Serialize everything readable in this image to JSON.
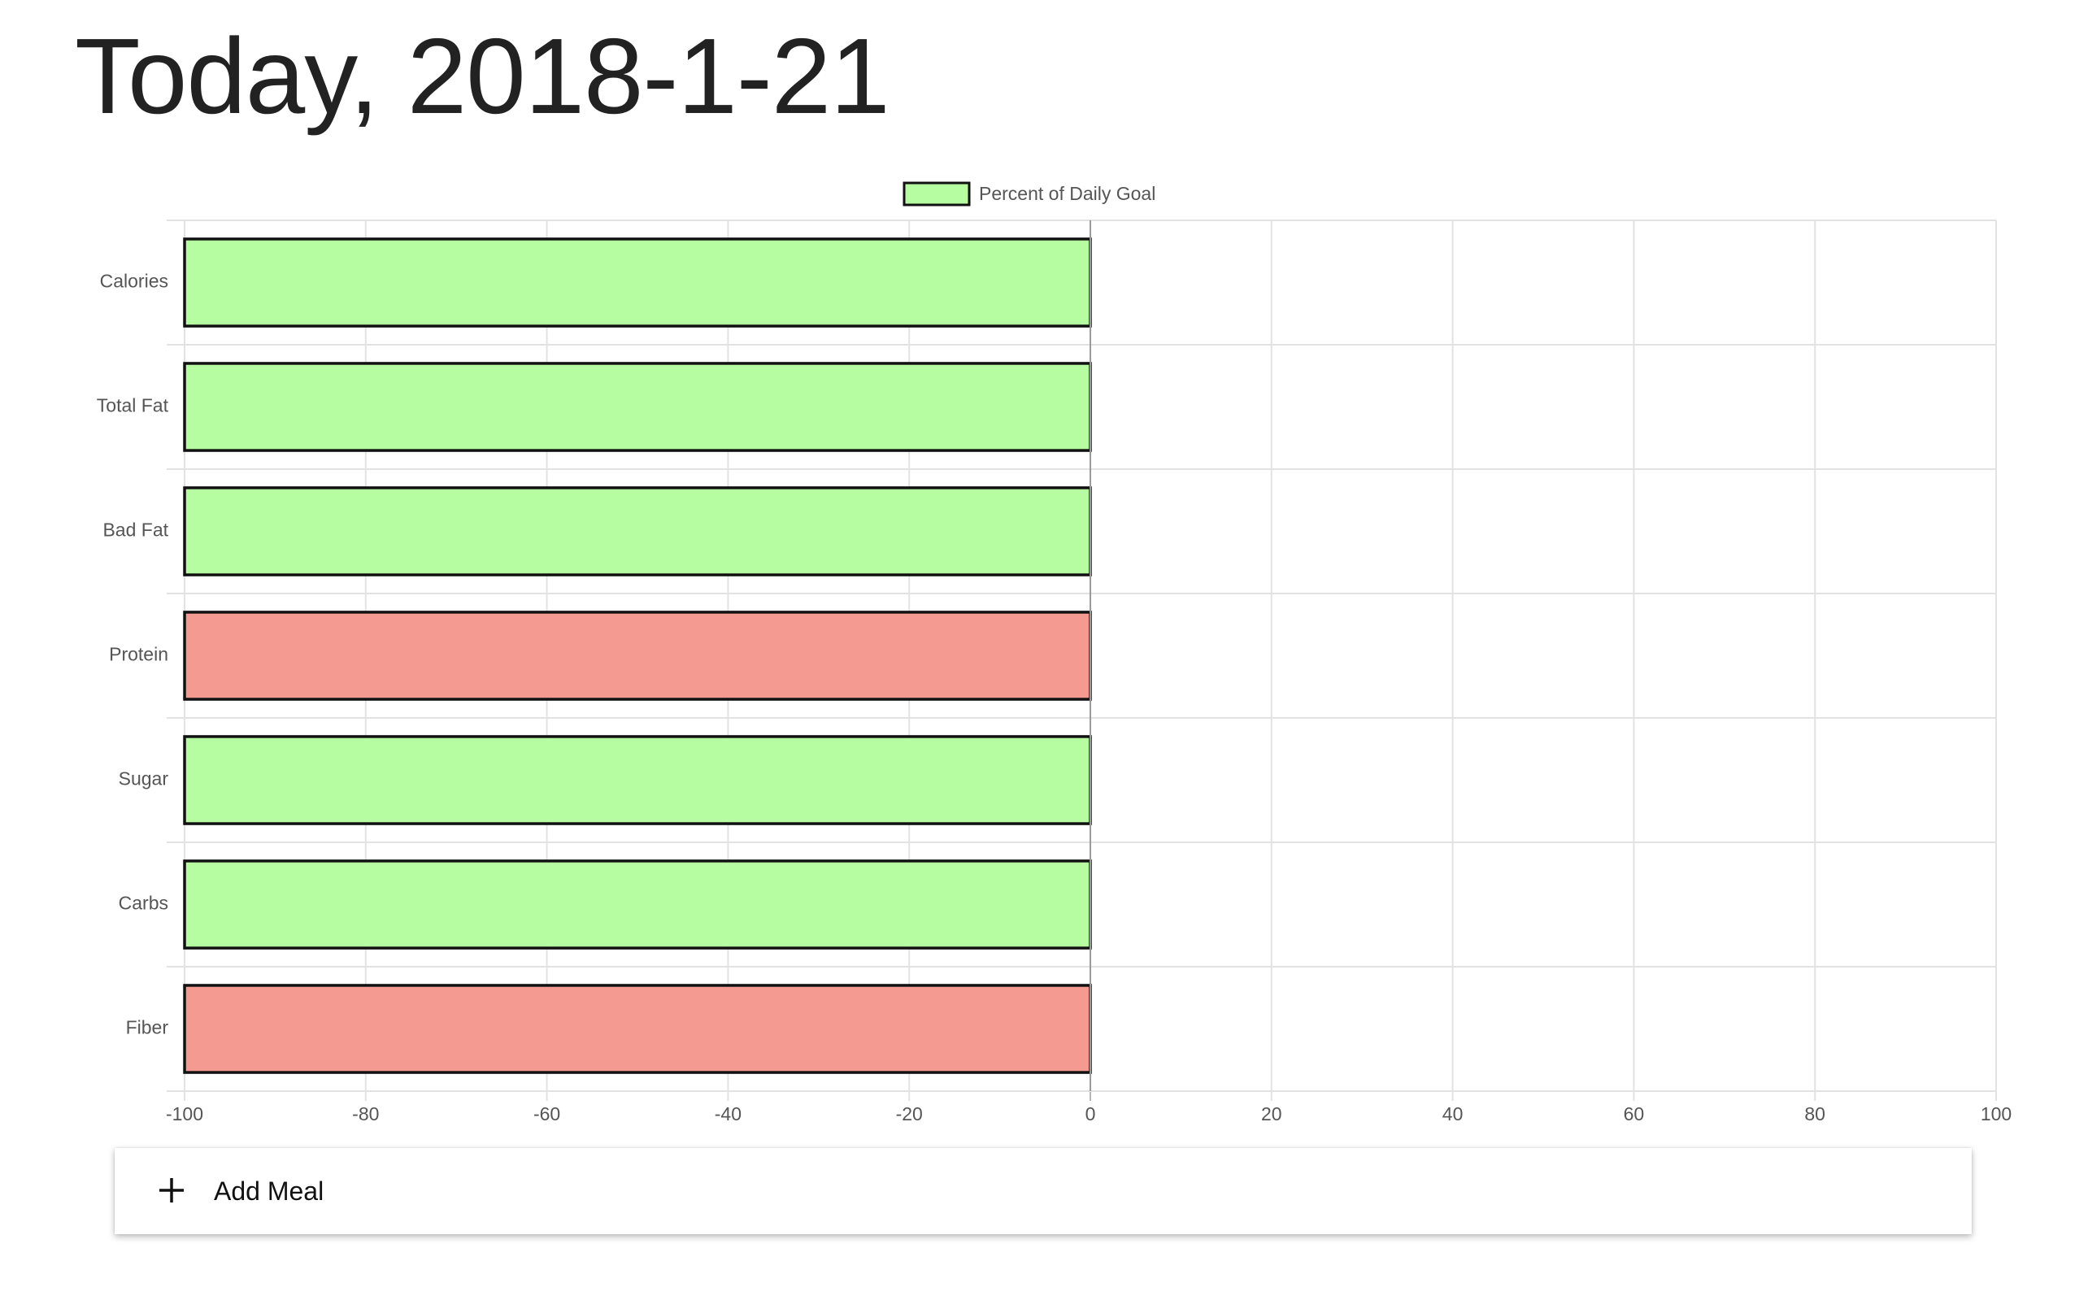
{
  "page": {
    "title": "Today, 2018-1-21"
  },
  "actions": {
    "add_meal_label": "Add Meal",
    "add_meal_icon": "plus-icon"
  },
  "colors": {
    "under_goal": "#b6fca0",
    "over_goal": "#f49a90",
    "bar_border": "#111111",
    "grid": "#e2e2e2"
  },
  "chart_data": {
    "type": "bar",
    "orientation": "horizontal",
    "legend": {
      "label": "Percent of Daily Goal",
      "position": "top"
    },
    "categories": [
      "Calories",
      "Total Fat",
      "Bad Fat",
      "Protein",
      "Sugar",
      "Carbs",
      "Fiber"
    ],
    "series": [
      {
        "name": "Percent of Daily Goal",
        "values": [
          -100,
          -100,
          -100,
          -100,
          -100,
          -100,
          -100
        ],
        "bar_colors": [
          "#b6fca0",
          "#b6fca0",
          "#b6fca0",
          "#f49a90",
          "#b6fca0",
          "#b6fca0",
          "#f49a90"
        ]
      }
    ],
    "xlim": [
      -100,
      100
    ],
    "xticks": [
      -100,
      -80,
      -60,
      -40,
      -20,
      0,
      20,
      40,
      60,
      80,
      100
    ],
    "xlabel": "",
    "ylabel": "",
    "grid": true
  }
}
